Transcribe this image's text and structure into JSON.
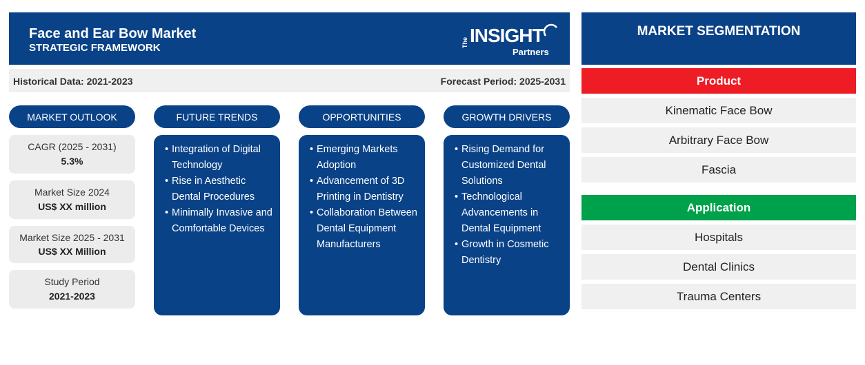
{
  "header": {
    "title": "Face and Ear Bow Market",
    "subtitle": "STRATEGIC FRAMEWORK",
    "logo_the": "The",
    "logo_main": "INSIGHT",
    "logo_sub": "Partners"
  },
  "periods": {
    "historical": "Historical Data: 2021-2023",
    "forecast": "Forecast Period: 2025-2031"
  },
  "columns": {
    "outlook": "MARKET OUTLOOK",
    "trends": "FUTURE TRENDS",
    "opportunities": "OPPORTUNITIES",
    "drivers": "GROWTH DRIVERS"
  },
  "outlook": [
    {
      "label": "CAGR (2025 - 2031)",
      "value": "5.3%"
    },
    {
      "label": "Market Size 2024",
      "value": "US$ XX million"
    },
    {
      "label": "Market Size 2025 - 2031",
      "value": "US$ XX Million"
    },
    {
      "label": "Study Period",
      "value": "2021-2023"
    }
  ],
  "trends": [
    "Integration of Digital Technology",
    "Rise in Aesthetic Dental Procedures",
    "Minimally Invasive and Comfortable Devices"
  ],
  "opportunities": [
    "Emerging Markets Adoption",
    "Advancement of 3D Printing in Dentistry",
    "Collaboration Between Dental Equipment Manufacturers"
  ],
  "drivers": [
    "Rising Demand for Customized Dental Solutions",
    "Technological Advancements in Dental Equipment",
    "Growth in Cosmetic Dentistry"
  ],
  "segmentation": {
    "title": "MARKET SEGMENTATION",
    "product": {
      "label": "Product",
      "color": "#ee1c25",
      "items": [
        "Kinematic Face Bow",
        "Arbitrary Face Bow",
        "Fascia"
      ]
    },
    "application": {
      "label": "Application",
      "color": "#00a14b",
      "items": [
        "Hospitals",
        "Dental Clinics",
        "Trauma Centers"
      ]
    }
  },
  "colors": {
    "brand_blue": "#0a4288",
    "panel_gray": "#ececec"
  }
}
